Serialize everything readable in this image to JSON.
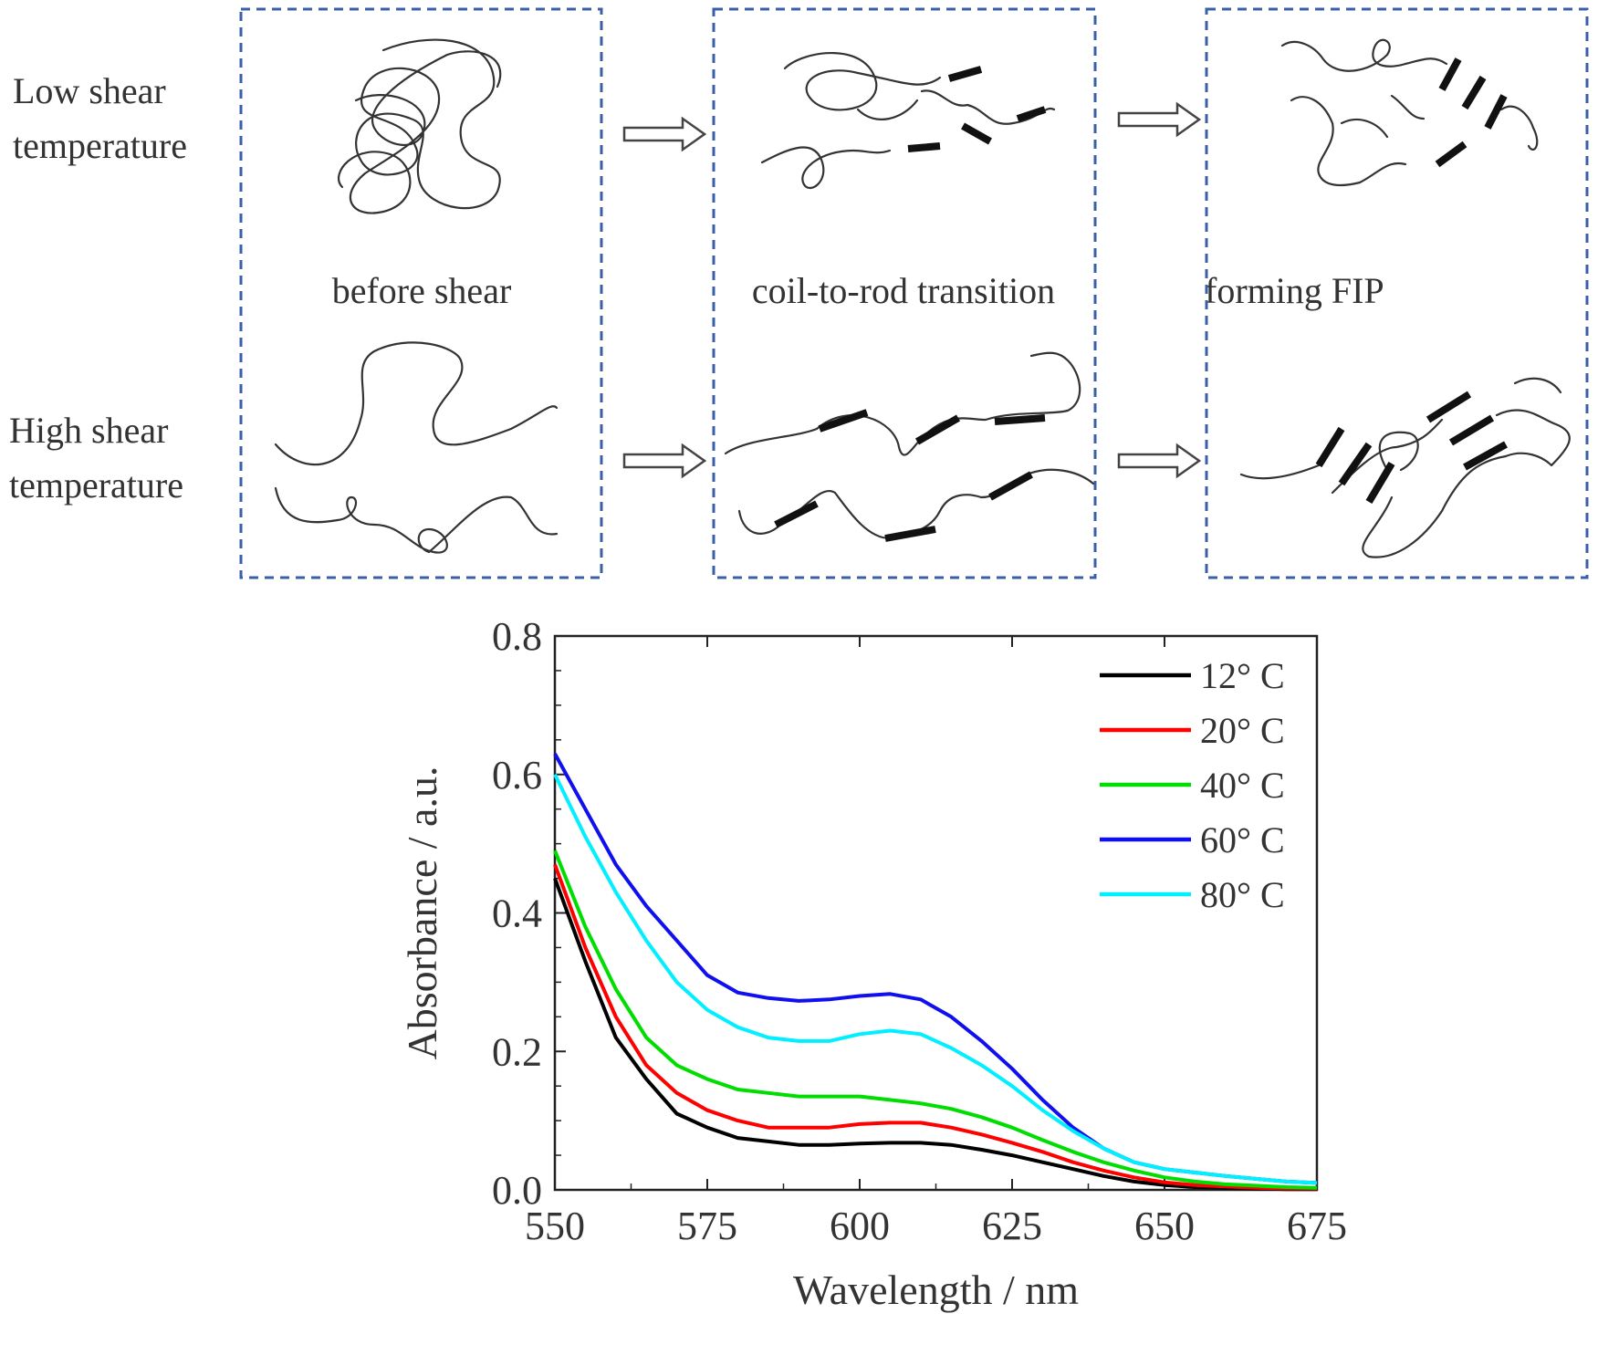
{
  "scheme": {
    "rows": [
      {
        "label_line1": "Low shear",
        "label_line2": "temperature"
      },
      {
        "label_line1": "High shear",
        "label_line2": "temperature"
      }
    ],
    "stages": [
      "before shear",
      "coil-to-rod transition",
      "forming FIP"
    ]
  },
  "chart_data": {
    "type": "line",
    "xlabel": "Wavelength / nm",
    "ylabel": "Absorbance / a.u.",
    "xlim": [
      550,
      675
    ],
    "ylim": [
      0.0,
      0.8
    ],
    "xticks": [
      "550",
      "575",
      "600",
      "625",
      "650",
      "675"
    ],
    "yticks": [
      "0.0",
      "0.2",
      "0.4",
      "0.6",
      "0.8"
    ],
    "legend_position": "top-right",
    "grid": false,
    "series": [
      {
        "name": "12° C",
        "color": "#000000",
        "x": [
          550,
          555,
          560,
          565,
          570,
          575,
          580,
          585,
          590,
          595,
          600,
          605,
          610,
          615,
          620,
          625,
          630,
          635,
          640,
          645,
          650,
          655,
          660,
          665,
          670,
          675
        ],
        "y": [
          0.45,
          0.33,
          0.22,
          0.16,
          0.11,
          0.09,
          0.075,
          0.07,
          0.065,
          0.065,
          0.067,
          0.068,
          0.068,
          0.065,
          0.058,
          0.05,
          0.04,
          0.03,
          0.02,
          0.012,
          0.007,
          0.004,
          0.003,
          0.002,
          0.001,
          0.001
        ]
      },
      {
        "name": "20° C",
        "color": "#ff0000",
        "x": [
          550,
          555,
          560,
          565,
          570,
          575,
          580,
          585,
          590,
          595,
          600,
          605,
          610,
          615,
          620,
          625,
          630,
          635,
          640,
          645,
          650,
          655,
          660,
          665,
          670,
          675
        ],
        "y": [
          0.47,
          0.35,
          0.25,
          0.18,
          0.14,
          0.115,
          0.1,
          0.09,
          0.09,
          0.09,
          0.095,
          0.097,
          0.097,
          0.09,
          0.08,
          0.068,
          0.055,
          0.04,
          0.028,
          0.018,
          0.011,
          0.007,
          0.005,
          0.003,
          0.002,
          0.002
        ]
      },
      {
        "name": "40° C",
        "color": "#00dd00",
        "x": [
          550,
          555,
          560,
          565,
          570,
          575,
          580,
          585,
          590,
          595,
          600,
          605,
          610,
          615,
          620,
          625,
          630,
          635,
          640,
          645,
          650,
          655,
          660,
          665,
          670,
          675
        ],
        "y": [
          0.49,
          0.38,
          0.29,
          0.22,
          0.18,
          0.16,
          0.145,
          0.14,
          0.135,
          0.135,
          0.135,
          0.13,
          0.125,
          0.117,
          0.105,
          0.09,
          0.072,
          0.055,
          0.04,
          0.028,
          0.018,
          0.012,
          0.008,
          0.006,
          0.004,
          0.003
        ]
      },
      {
        "name": "60° C",
        "color": "#1010ee",
        "x": [
          550,
          555,
          560,
          565,
          570,
          575,
          580,
          585,
          590,
          595,
          600,
          605,
          610,
          615,
          620,
          625,
          630,
          635,
          640,
          645,
          650,
          655,
          660,
          665,
          670,
          675
        ],
        "y": [
          0.63,
          0.55,
          0.47,
          0.41,
          0.36,
          0.31,
          0.285,
          0.277,
          0.273,
          0.275,
          0.28,
          0.283,
          0.275,
          0.25,
          0.215,
          0.175,
          0.13,
          0.09,
          0.06,
          0.04,
          0.03,
          0.025,
          0.02,
          0.016,
          0.012,
          0.01
        ]
      },
      {
        "name": "80° C",
        "color": "#00f0ff",
        "x": [
          550,
          555,
          560,
          565,
          570,
          575,
          580,
          585,
          590,
          595,
          600,
          605,
          610,
          615,
          620,
          625,
          630,
          635,
          640,
          645,
          650,
          655,
          660,
          665,
          670,
          675
        ],
        "y": [
          0.6,
          0.51,
          0.43,
          0.36,
          0.3,
          0.26,
          0.235,
          0.22,
          0.215,
          0.215,
          0.225,
          0.23,
          0.225,
          0.205,
          0.18,
          0.15,
          0.115,
          0.085,
          0.06,
          0.04,
          0.03,
          0.025,
          0.02,
          0.016,
          0.012,
          0.01
        ]
      }
    ]
  }
}
